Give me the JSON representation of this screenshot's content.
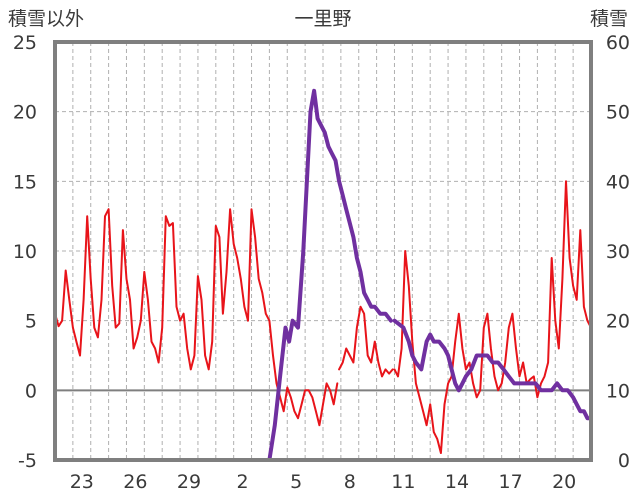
{
  "chart_data": {
    "type": "line",
    "title": "一里野",
    "left_axis_label": "積雪以外",
    "right_axis_label": "積雪",
    "y_left": {
      "min": -5,
      "max": 25,
      "step": 5,
      "ticks": [
        "25",
        "20",
        "15",
        "10",
        "5",
        "0",
        "-5"
      ]
    },
    "y_right": {
      "min": 0,
      "max": 60,
      "step": 10,
      "ticks": [
        "60",
        "50",
        "40",
        "30",
        "20",
        "10",
        "0"
      ]
    },
    "x_range": [
      0,
      30
    ],
    "x_ticks": [
      {
        "pos": 1.5,
        "label": "23"
      },
      {
        "pos": 4.5,
        "label": "26"
      },
      {
        "pos": 7.5,
        "label": "29"
      },
      {
        "pos": 10.5,
        "label": "2"
      },
      {
        "pos": 13.5,
        "label": "5"
      },
      {
        "pos": 16.5,
        "label": "8"
      },
      {
        "pos": 19.5,
        "label": "11"
      },
      {
        "pos": 22.5,
        "label": "14"
      },
      {
        "pos": 25.5,
        "label": "17"
      },
      {
        "pos": 28.5,
        "label": "20"
      }
    ],
    "grid": true,
    "series": [
      {
        "axis": "left",
        "color": "#e8141a",
        "segments": [
          [
            [
              0.0,
              5.5
            ],
            [
              0.2,
              4.6
            ],
            [
              0.4,
              5.0
            ],
            [
              0.6,
              8.6
            ],
            [
              0.8,
              6.5
            ],
            [
              1.0,
              4.5
            ],
            [
              1.2,
              3.5
            ],
            [
              1.4,
              2.5
            ],
            [
              1.6,
              6.5
            ],
            [
              1.8,
              12.5
            ],
            [
              2.0,
              8.0
            ],
            [
              2.2,
              4.5
            ],
            [
              2.4,
              3.8
            ],
            [
              2.6,
              6.5
            ],
            [
              2.8,
              12.5
            ],
            [
              3.0,
              13.0
            ],
            [
              3.2,
              7.5
            ],
            [
              3.4,
              4.5
            ],
            [
              3.6,
              4.8
            ],
            [
              3.8,
              11.5
            ],
            [
              4.0,
              8.0
            ],
            [
              4.2,
              6.5
            ],
            [
              4.4,
              3.0
            ],
            [
              4.6,
              3.8
            ],
            [
              4.8,
              5.0
            ],
            [
              5.0,
              8.5
            ],
            [
              5.2,
              6.5
            ],
            [
              5.4,
              3.5
            ],
            [
              5.6,
              3.0
            ],
            [
              5.8,
              2.0
            ],
            [
              6.0,
              4.5
            ],
            [
              6.2,
              12.5
            ],
            [
              6.4,
              11.8
            ],
            [
              6.6,
              12.0
            ],
            [
              6.8,
              6.0
            ],
            [
              7.0,
              5.0
            ],
            [
              7.2,
              5.5
            ],
            [
              7.4,
              3.0
            ],
            [
              7.6,
              1.5
            ],
            [
              7.8,
              2.5
            ],
            [
              8.0,
              8.2
            ],
            [
              8.2,
              6.5
            ],
            [
              8.4,
              2.5
            ],
            [
              8.6,
              1.5
            ],
            [
              8.8,
              3.5
            ],
            [
              9.0,
              11.8
            ],
            [
              9.2,
              11.0
            ],
            [
              9.4,
              5.5
            ],
            [
              9.6,
              8.5
            ],
            [
              9.8,
              13.0
            ],
            [
              10.0,
              10.5
            ],
            [
              10.2,
              9.5
            ],
            [
              10.4,
              8.0
            ],
            [
              10.6,
              6.0
            ],
            [
              10.8,
              5.0
            ],
            [
              11.0,
              13.0
            ],
            [
              11.2,
              11.0
            ],
            [
              11.4,
              8.0
            ],
            [
              11.6,
              7.0
            ],
            [
              11.8,
              5.5
            ],
            [
              12.0,
              5.0
            ],
            [
              12.2,
              2.5
            ],
            [
              12.4,
              0.5
            ],
            [
              12.6,
              -0.5
            ],
            [
              12.8,
              -1.5
            ],
            [
              13.0,
              0.2
            ],
            [
              13.2,
              -0.5
            ],
            [
              13.4,
              -1.5
            ],
            [
              13.6,
              -2.0
            ],
            [
              13.8,
              -1.0
            ],
            [
              14.0,
              0.0
            ],
            [
              14.2,
              0.0
            ],
            [
              14.4,
              -0.5
            ],
            [
              14.6,
              -1.5
            ],
            [
              14.8,
              -2.5
            ],
            [
              15.0,
              -1.0
            ],
            [
              15.2,
              0.5
            ],
            [
              15.4,
              0.0
            ],
            [
              15.6,
              -1.0
            ],
            [
              15.8,
              0.5
            ]
          ],
          [
            [
              15.9,
              1.5
            ],
            [
              16.1,
              2.0
            ],
            [
              16.3,
              3.0
            ],
            [
              16.5,
              2.5
            ],
            [
              16.7,
              2.0
            ],
            [
              16.9,
              4.5
            ],
            [
              17.1,
              6.0
            ],
            [
              17.3,
              5.5
            ],
            [
              17.5,
              2.5
            ],
            [
              17.7,
              2.0
            ],
            [
              17.9,
              3.5
            ],
            [
              18.1,
              2.0
            ],
            [
              18.3,
              1.0
            ],
            [
              18.5,
              1.5
            ],
            [
              18.7,
              1.2
            ],
            [
              18.9,
              1.5
            ]
          ],
          [
            [
              19.0,
              1.5
            ],
            [
              19.2,
              1.0
            ],
            [
              19.4,
              3.0
            ],
            [
              19.6,
              10.0
            ],
            [
              19.8,
              7.5
            ],
            [
              20.0,
              3.5
            ],
            [
              20.2,
              0.5
            ],
            [
              20.4,
              -0.5
            ],
            [
              20.6,
              -1.5
            ],
            [
              20.8,
              -2.5
            ],
            [
              21.0,
              -1.0
            ],
            [
              21.2,
              -3.0
            ],
            [
              21.4,
              -3.5
            ],
            [
              21.6,
              -4.5
            ],
            [
              21.8,
              -1.0
            ],
            [
              22.0,
              0.5
            ],
            [
              22.2,
              1.0
            ],
            [
              22.4,
              3.5
            ],
            [
              22.6,
              5.5
            ],
            [
              22.8,
              3.0
            ],
            [
              23.0,
              1.5
            ],
            [
              23.2,
              2.0
            ],
            [
              23.4,
              0.5
            ],
            [
              23.6,
              -0.5
            ],
            [
              23.8,
              0.0
            ],
            [
              24.0,
              4.5
            ],
            [
              24.2,
              5.5
            ],
            [
              24.4,
              3.0
            ],
            [
              24.6,
              1.0
            ],
            [
              24.8,
              0.0
            ],
            [
              25.0,
              0.5
            ],
            [
              25.2,
              2.0
            ],
            [
              25.4,
              4.5
            ],
            [
              25.6,
              5.5
            ],
            [
              25.8,
              3.0
            ],
            [
              26.0,
              1.0
            ],
            [
              26.2,
              2.0
            ],
            [
              26.4,
              0.5
            ],
            [
              26.6,
              0.8
            ],
            [
              26.8,
              1.0
            ],
            [
              27.0,
              -0.5
            ],
            [
              27.2,
              0.5
            ],
            [
              27.4,
              1.0
            ],
            [
              27.6,
              2.0
            ],
            [
              27.8,
              9.5
            ],
            [
              28.0,
              5.0
            ],
            [
              28.2,
              3.0
            ],
            [
              28.4,
              8.0
            ],
            [
              28.6,
              15.0
            ],
            [
              28.8,
              9.5
            ],
            [
              29.0,
              7.5
            ],
            [
              29.2,
              6.5
            ],
            [
              29.4,
              11.5
            ],
            [
              29.6,
              6.0
            ],
            [
              29.8,
              5.0
            ],
            [
              30.0,
              4.5
            ]
          ]
        ]
      },
      {
        "axis": "right",
        "color": "#7030a0",
        "segments": [
          [
            [
              0.0,
              0
            ],
            [
              11.5,
              0
            ],
            [
              12.0,
              0
            ],
            [
              12.3,
              5
            ],
            [
              12.6,
              12
            ],
            [
              12.9,
              19
            ],
            [
              13.1,
              17
            ],
            [
              13.3,
              20
            ],
            [
              13.6,
              19
            ],
            [
              13.9,
              30
            ],
            [
              14.1,
              40
            ],
            [
              14.3,
              50
            ],
            [
              14.5,
              53
            ],
            [
              14.7,
              49
            ],
            [
              14.9,
              48
            ],
            [
              15.1,
              47
            ],
            [
              15.3,
              45
            ],
            [
              15.5,
              44
            ],
            [
              15.7,
              43
            ],
            [
              15.9,
              40
            ],
            [
              16.1,
              38
            ],
            [
              16.3,
              36
            ],
            [
              16.5,
              34
            ],
            [
              16.7,
              32
            ],
            [
              16.9,
              29
            ],
            [
              17.1,
              27
            ],
            [
              17.3,
              24
            ],
            [
              17.5,
              23
            ],
            [
              17.7,
              22
            ],
            [
              17.9,
              22
            ],
            [
              18.2,
              21
            ],
            [
              18.5,
              21
            ],
            [
              18.8,
              20
            ]
          ],
          [
            [
              19.0,
              20
            ],
            [
              19.5,
              19
            ],
            [
              19.8,
              17
            ],
            [
              20.0,
              15
            ],
            [
              20.2,
              14
            ],
            [
              20.5,
              13
            ],
            [
              20.8,
              17
            ],
            [
              21.0,
              18
            ],
            [
              21.2,
              17
            ],
            [
              21.5,
              17
            ],
            [
              21.8,
              16
            ],
            [
              22.0,
              15
            ],
            [
              22.2,
              13
            ],
            [
              22.4,
              11
            ],
            [
              22.6,
              10
            ],
            [
              22.8,
              11
            ],
            [
              23.0,
              12
            ],
            [
              23.3,
              13
            ],
            [
              23.6,
              15
            ],
            [
              23.9,
              15
            ],
            [
              24.2,
              15
            ],
            [
              24.5,
              14
            ],
            [
              24.8,
              14
            ],
            [
              25.1,
              13
            ],
            [
              25.4,
              12
            ],
            [
              25.7,
              11
            ],
            [
              26.0,
              11
            ],
            [
              26.3,
              11
            ],
            [
              26.6,
              11
            ],
            [
              26.9,
              11
            ],
            [
              27.2,
              10
            ],
            [
              27.5,
              10
            ],
            [
              27.8,
              10
            ],
            [
              28.1,
              11
            ],
            [
              28.4,
              10
            ],
            [
              28.7,
              10
            ],
            [
              29.0,
              9
            ],
            [
              29.2,
              8
            ],
            [
              29.4,
              7
            ],
            [
              29.6,
              7
            ],
            [
              29.8,
              6
            ],
            [
              30.0,
              6
            ]
          ]
        ]
      }
    ]
  }
}
